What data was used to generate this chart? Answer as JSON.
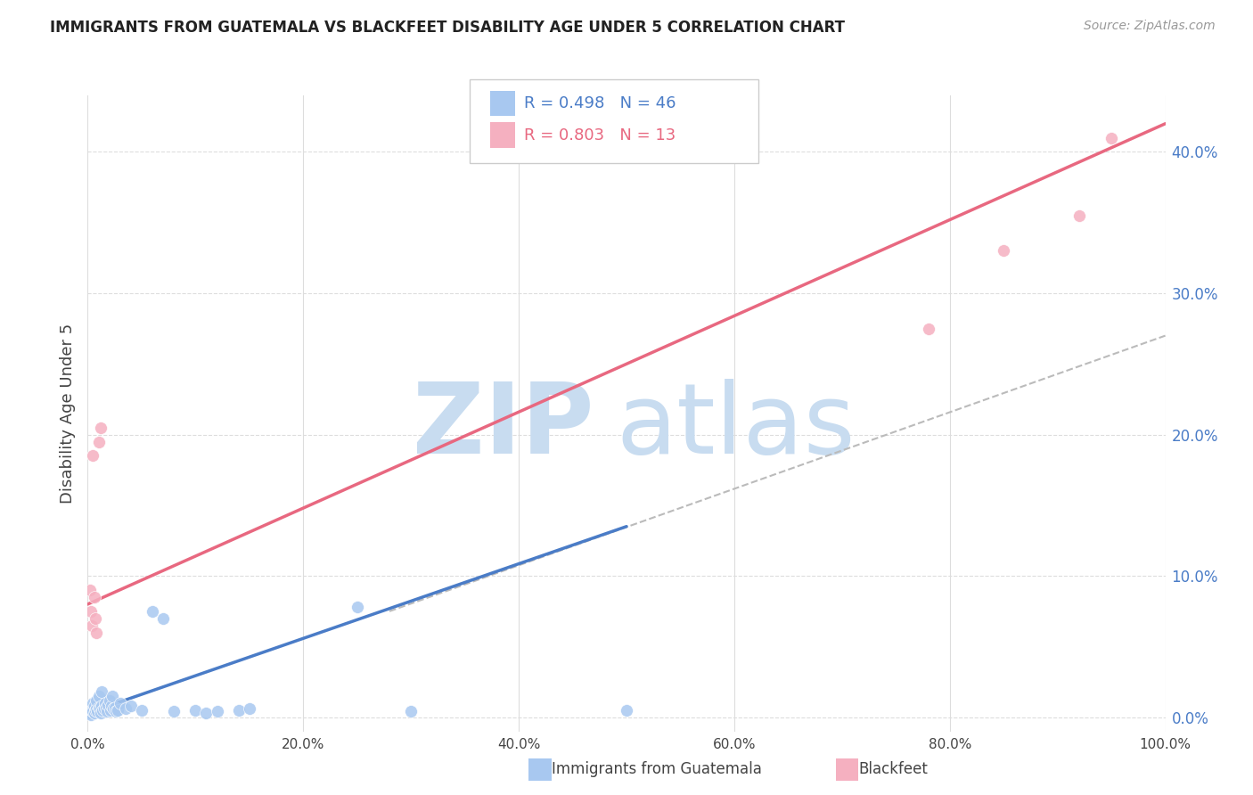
{
  "title": "IMMIGRANTS FROM GUATEMALA VS BLACKFEET DISABILITY AGE UNDER 5 CORRELATION CHART",
  "source": "Source: ZipAtlas.com",
  "ylabel": "Disability Age Under 5",
  "ytick_values": [
    0,
    10,
    20,
    30,
    40
  ],
  "xlim": [
    0,
    100
  ],
  "ylim": [
    -1,
    44
  ],
  "legend_blue_r": "R = 0.498",
  "legend_blue_n": "N = 46",
  "legend_pink_r": "R = 0.803",
  "legend_pink_n": "N = 13",
  "blue_color": "#A8C8F0",
  "pink_color": "#F5B0C0",
  "blue_line_color": "#4A7CC7",
  "pink_line_color": "#E86880",
  "scatter_blue_x": [
    0.2,
    0.3,
    0.4,
    0.5,
    0.5,
    0.6,
    0.6,
    0.7,
    0.8,
    0.8,
    0.9,
    1.0,
    1.0,
    1.1,
    1.2,
    1.3,
    1.3,
    1.4,
    1.5,
    1.6,
    1.7,
    1.8,
    1.9,
    2.0,
    2.1,
    2.2,
    2.3,
    2.4,
    2.5,
    2.6,
    2.8,
    3.0,
    3.5,
    4.0,
    5.0,
    6.0,
    7.0,
    8.0,
    10.0,
    11.0,
    12.0,
    14.0,
    15.0,
    25.0,
    30.0,
    50.0
  ],
  "scatter_blue_y": [
    0.3,
    0.2,
    0.5,
    0.4,
    1.0,
    0.3,
    0.8,
    0.5,
    0.6,
    1.2,
    0.4,
    0.7,
    1.5,
    0.6,
    0.3,
    0.8,
    1.8,
    0.5,
    0.6,
    1.0,
    0.7,
    0.4,
    0.9,
    1.2,
    0.5,
    0.8,
    1.5,
    0.6,
    0.7,
    0.4,
    0.5,
    1.0,
    0.6,
    0.8,
    0.5,
    7.5,
    7.0,
    0.4,
    0.5,
    0.3,
    0.4,
    0.5,
    0.6,
    7.8,
    0.4,
    0.5
  ],
  "scatter_pink_x": [
    0.2,
    0.3,
    0.4,
    0.5,
    0.6,
    0.7,
    0.8,
    1.0,
    1.2,
    78.0,
    85.0,
    92.0,
    95.0
  ],
  "scatter_pink_y": [
    9.0,
    7.5,
    6.5,
    18.5,
    8.5,
    7.0,
    6.0,
    19.5,
    20.5,
    27.5,
    33.0,
    35.5,
    41.0
  ],
  "blue_line_x": [
    0,
    50
  ],
  "blue_line_y": [
    0.3,
    13.5
  ],
  "pink_line_x": [
    0,
    100
  ],
  "pink_line_y": [
    8.0,
    42.0
  ],
  "dash_line_x": [
    28,
    100
  ],
  "dash_line_y": [
    7.5,
    27.0
  ],
  "watermark_top": "ZIP",
  "watermark_bottom": "atlas",
  "watermark_color": "#C8DCF0",
  "background_color": "#FFFFFF",
  "grid_color": "#DDDDDD",
  "xtick_positions": [
    0,
    20,
    40,
    60,
    80,
    100
  ],
  "xtick_labels": [
    "0.0%",
    "20.0%",
    "40.0%",
    "60.0%",
    "80.0%",
    "100.0%"
  ]
}
